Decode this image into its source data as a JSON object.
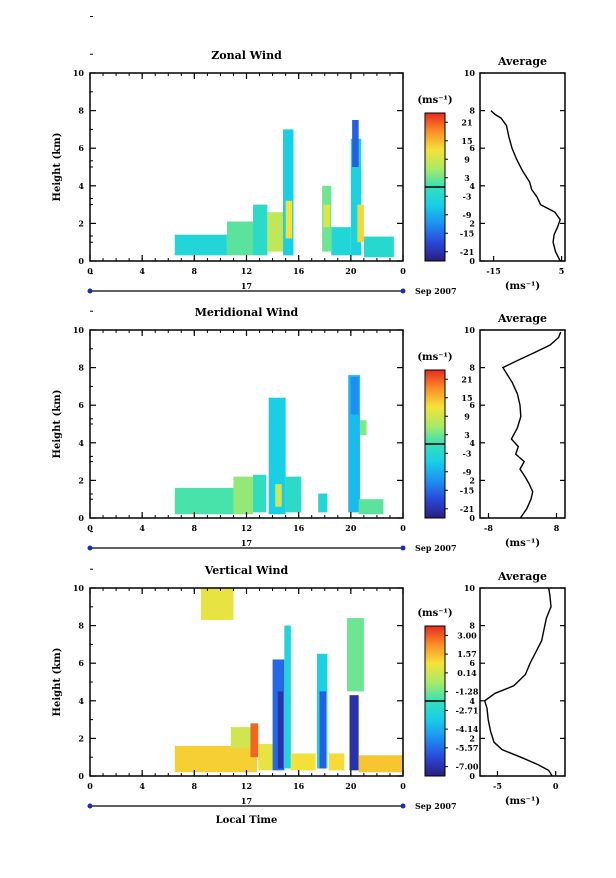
{
  "chart_data": [
    {
      "type": "heatmap",
      "title": "Zonal Wind",
      "ylabel": "Height (km)",
      "xticks": [
        "0",
        "4",
        "8",
        "12",
        "16",
        "20",
        "0"
      ],
      "yticks": [
        "0",
        "2",
        "4",
        "6",
        "8",
        "10"
      ],
      "xlim": [
        0,
        24
      ],
      "ylim": [
        0,
        10
      ],
      "day_label": "17",
      "date_label": "Sep 2007",
      "colorbar_unit": "(ms⁻¹)",
      "colorbar_ticks": [
        "21",
        "15",
        "9",
        "3",
        "-3",
        "-9",
        "-15",
        "-21"
      ],
      "colorbar_range": [
        -24,
        24
      ],
      "regions": [
        {
          "x0": 6.5,
          "x1": 10.5,
          "y0": 0.3,
          "y1": 1.4,
          "v": -4
        },
        {
          "x0": 10.5,
          "x1": 12.5,
          "y0": 0.3,
          "y1": 2.1,
          "v": 2
        },
        {
          "x0": 12.5,
          "x1": 13.6,
          "y0": 0.3,
          "y1": 3.0,
          "v": -2
        },
        {
          "x0": 13.6,
          "x1": 14.8,
          "y0": 0.5,
          "y1": 2.6,
          "v": 8
        },
        {
          "x0": 14.8,
          "x1": 15.6,
          "y0": 0.3,
          "y1": 7.0,
          "v": -6
        },
        {
          "x0": 15.0,
          "x1": 15.5,
          "y0": 1.2,
          "y1": 3.2,
          "v": 12
        },
        {
          "x0": 17.8,
          "x1": 18.5,
          "y0": 0.5,
          "y1": 4.0,
          "v": 3
        },
        {
          "x0": 17.9,
          "x1": 18.4,
          "y0": 1.8,
          "y1": 3.0,
          "v": 10
        },
        {
          "x0": 18.5,
          "x1": 20.0,
          "y0": 0.3,
          "y1": 1.8,
          "v": -4
        },
        {
          "x0": 20.0,
          "x1": 20.8,
          "y0": 0.3,
          "y1": 6.5,
          "v": -5
        },
        {
          "x0": 20.1,
          "x1": 20.6,
          "y0": 5.0,
          "y1": 7.5,
          "v": -16
        },
        {
          "x0": 20.5,
          "x1": 21.0,
          "y0": 1.0,
          "y1": 3.0,
          "v": 13
        },
        {
          "x0": 21.0,
          "x1": 23.3,
          "y0": 0.2,
          "y1": 1.3,
          "v": -3
        }
      ]
    },
    {
      "type": "line",
      "title": "Average",
      "xlabel": "(ms⁻¹)",
      "xticks": [
        "-15",
        "5"
      ],
      "yticks": [
        "0",
        "2",
        "4",
        "6",
        "8",
        "10"
      ],
      "xlim": [
        -19,
        6
      ],
      "ylim": [
        0,
        10
      ],
      "points": [
        [
          4.6,
          0.0
        ],
        [
          3.2,
          0.5
        ],
        [
          2.5,
          1.0
        ],
        [
          2.8,
          1.4
        ],
        [
          3.8,
          1.8
        ],
        [
          4.6,
          2.2
        ],
        [
          3.0,
          2.6
        ],
        [
          -1.2,
          3.0
        ],
        [
          -2.2,
          3.4
        ],
        [
          -3.8,
          3.8
        ],
        [
          -4.4,
          4.2
        ],
        [
          -6.5,
          4.8
        ],
        [
          -8.2,
          5.4
        ],
        [
          -9.6,
          6.0
        ],
        [
          -10.5,
          6.6
        ],
        [
          -11.2,
          7.2
        ],
        [
          -12.8,
          7.6
        ],
        [
          -14.6,
          7.8
        ],
        [
          -15.8,
          8.0
        ]
      ]
    },
    {
      "type": "heatmap",
      "title": "Meridional Wind",
      "ylabel": "Height (km)",
      "xticks": [
        "0",
        "4",
        "8",
        "12",
        "16",
        "20",
        "0"
      ],
      "yticks": [
        "0",
        "2",
        "4",
        "6",
        "8",
        "10"
      ],
      "xlim": [
        0,
        24
      ],
      "ylim": [
        0,
        10
      ],
      "day_label": "17",
      "date_label": "Sep 2007",
      "colorbar_unit": "(ms⁻¹)",
      "colorbar_ticks": [
        "21",
        "15",
        "9",
        "3",
        "-3",
        "-9",
        "-15",
        "-21"
      ],
      "colorbar_range": [
        -24,
        24
      ],
      "regions": [
        {
          "x0": 6.5,
          "x1": 11.0,
          "y0": 0.2,
          "y1": 1.6,
          "v": 1
        },
        {
          "x0": 11.0,
          "x1": 12.5,
          "y0": 0.2,
          "y1": 2.2,
          "v": 5
        },
        {
          "x0": 12.5,
          "x1": 13.5,
          "y0": 0.3,
          "y1": 2.3,
          "v": -1
        },
        {
          "x0": 13.7,
          "x1": 15.0,
          "y0": 0.2,
          "y1": 6.4,
          "v": -6
        },
        {
          "x0": 14.2,
          "x1": 14.7,
          "y0": 0.6,
          "y1": 1.8,
          "v": 9
        },
        {
          "x0": 15.0,
          "x1": 16.2,
          "y0": 0.3,
          "y1": 2.2,
          "v": -2
        },
        {
          "x0": 17.5,
          "x1": 18.2,
          "y0": 0.3,
          "y1": 1.3,
          "v": -4
        },
        {
          "x0": 19.8,
          "x1": 20.7,
          "y0": 0.3,
          "y1": 7.6,
          "v": -8
        },
        {
          "x0": 20.0,
          "x1": 20.6,
          "y0": 5.5,
          "y1": 7.5,
          "v": -12
        },
        {
          "x0": 20.6,
          "x1": 22.5,
          "y0": 0.2,
          "y1": 1.0,
          "v": 2
        },
        {
          "x0": 20.7,
          "x1": 21.2,
          "y0": 4.4,
          "y1": 5.2,
          "v": 4
        }
      ]
    },
    {
      "type": "line",
      "title": "Average",
      "xlabel": "(ms⁻¹)",
      "xticks": [
        "-8",
        "8"
      ],
      "yticks": [
        "0",
        "2",
        "4",
        "6",
        "8",
        "10"
      ],
      "xlim": [
        -10,
        10
      ],
      "ylim": [
        0,
        10
      ],
      "points": [
        [
          -0.5,
          0.0
        ],
        [
          1.0,
          0.5
        ],
        [
          2.0,
          1.0
        ],
        [
          2.4,
          1.4
        ],
        [
          1.6,
          1.8
        ],
        [
          0.6,
          2.2
        ],
        [
          -0.6,
          2.6
        ],
        [
          0.4,
          3.0
        ],
        [
          -1.6,
          3.4
        ],
        [
          -1.0,
          3.8
        ],
        [
          -2.6,
          4.2
        ],
        [
          -1.2,
          4.8
        ],
        [
          -0.4,
          5.4
        ],
        [
          -0.6,
          6.0
        ],
        [
          -1.2,
          6.6
        ],
        [
          -2.4,
          7.2
        ],
        [
          -3.5,
          7.6
        ],
        [
          -4.6,
          8.0
        ],
        [
          -1.0,
          8.4
        ],
        [
          2.8,
          8.8
        ],
        [
          6.5,
          9.2
        ],
        [
          8.5,
          9.6
        ],
        [
          9.0,
          9.9
        ]
      ]
    },
    {
      "type": "heatmap",
      "title": "Vertical Wind",
      "ylabel": "Height (km)",
      "xlabel": "Local Time",
      "xticks": [
        "0",
        "4",
        "8",
        "12",
        "16",
        "20",
        "0"
      ],
      "yticks": [
        "0",
        "2",
        "4",
        "6",
        "8",
        "10"
      ],
      "xlim": [
        0,
        24
      ],
      "ylim": [
        0,
        10
      ],
      "day_label": "17",
      "date_label": "Sep 2007",
      "colorbar_unit": "(ms⁻¹)",
      "colorbar_ticks": [
        "3.00",
        "1.57",
        "0.14",
        "-1.28",
        "-2.71",
        "-4.14",
        "-5.57",
        "-7.00"
      ],
      "colorbar_range": [
        -7.71,
        3.71
      ],
      "regions": [
        {
          "x0": 6.5,
          "x1": 12.8,
          "y0": 0.2,
          "y1": 1.6,
          "v": 1.2
        },
        {
          "x0": 8.5,
          "x1": 11.0,
          "y0": 8.3,
          "y1": 10.0,
          "v": 0.6
        },
        {
          "x0": 10.8,
          "x1": 12.5,
          "y0": 1.5,
          "y1": 2.6,
          "v": 0.2
        },
        {
          "x0": 12.3,
          "x1": 12.9,
          "y0": 1.0,
          "y1": 2.8,
          "v": 2.9
        },
        {
          "x0": 12.9,
          "x1": 14.0,
          "y0": 0.3,
          "y1": 1.7,
          "v": 0.6
        },
        {
          "x0": 14.0,
          "x1": 14.9,
          "y0": 0.3,
          "y1": 6.2,
          "v": -5.6
        },
        {
          "x0": 14.4,
          "x1": 14.8,
          "y0": 0.4,
          "y1": 4.5,
          "v": -7.0
        },
        {
          "x0": 14.9,
          "x1": 15.4,
          "y0": 0.4,
          "y1": 8.0,
          "v": -3.0
        },
        {
          "x0": 15.4,
          "x1": 17.3,
          "y0": 0.3,
          "y1": 1.2,
          "v": 0.9
        },
        {
          "x0": 17.4,
          "x1": 18.2,
          "y0": 0.4,
          "y1": 6.5,
          "v": -3.3
        },
        {
          "x0": 17.6,
          "x1": 18.1,
          "y0": 0.4,
          "y1": 4.5,
          "v": -5.8
        },
        {
          "x0": 18.3,
          "x1": 19.5,
          "y0": 0.3,
          "y1": 1.2,
          "v": 1.0
        },
        {
          "x0": 19.7,
          "x1": 21.0,
          "y0": 4.5,
          "y1": 8.4,
          "v": -1.3
        },
        {
          "x0": 19.9,
          "x1": 20.6,
          "y0": 0.3,
          "y1": 4.3,
          "v": -7.0
        },
        {
          "x0": 20.6,
          "x1": 24.0,
          "y0": 0.2,
          "y1": 1.1,
          "v": 1.4
        }
      ]
    },
    {
      "type": "line",
      "title": "Average",
      "xlabel": "(ms⁻¹)",
      "xticks": [
        "-5",
        "0"
      ],
      "yticks": [
        "0",
        "2",
        "4",
        "6",
        "8",
        "10"
      ],
      "xlim": [
        -6.5,
        0.8
      ],
      "ylim": [
        0,
        10
      ],
      "points": [
        [
          -0.3,
          0.0
        ],
        [
          -0.6,
          0.3
        ],
        [
          -1.5,
          0.6
        ],
        [
          -3.0,
          1.0
        ],
        [
          -4.6,
          1.4
        ],
        [
          -5.3,
          1.8
        ],
        [
          -5.6,
          2.4
        ],
        [
          -5.8,
          3.0
        ],
        [
          -5.9,
          3.6
        ],
        [
          -6.1,
          4.0
        ],
        [
          -5.2,
          4.4
        ],
        [
          -3.6,
          4.8
        ],
        [
          -2.6,
          5.4
        ],
        [
          -2.2,
          6.0
        ],
        [
          -1.7,
          6.6
        ],
        [
          -1.2,
          7.2
        ],
        [
          -1.0,
          7.8
        ],
        [
          -0.8,
          8.4
        ],
        [
          -0.4,
          9.0
        ],
        [
          -0.5,
          9.6
        ],
        [
          -0.6,
          10.0
        ]
      ]
    }
  ]
}
